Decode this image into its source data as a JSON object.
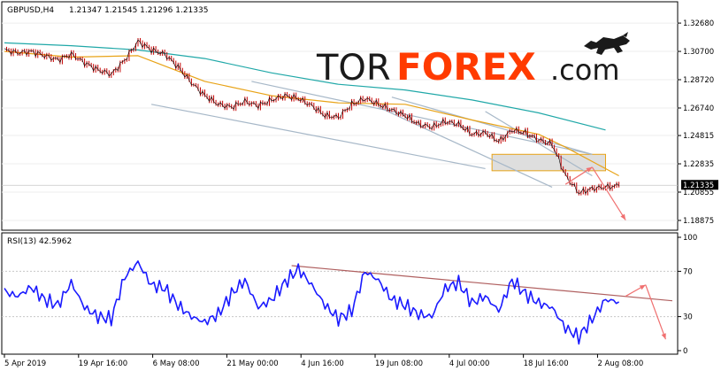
{
  "header": {
    "symbol": "GBPUSD,H4",
    "quote": "1.21347 1.21545 1.21296 1.21335"
  },
  "logo": {
    "part1": "TOR",
    "part2": "FOREX",
    "part3": ".com",
    "icon": "bull-icon",
    "accent_color": "#ff3b00"
  },
  "rsi_panel": {
    "title": "RSI(13) 42.5962"
  },
  "chart_data": [
    {
      "type": "line",
      "panel": "price",
      "ylim": [
        1.185,
        1.338
      ],
      "y_ticks": [
        "1.32680",
        "1.30700",
        "1.28720",
        "1.26740",
        "1.24815",
        "1.22835",
        "1.20855",
        "1.18875"
      ],
      "y_tick_values": [
        1.3268,
        1.307,
        1.2872,
        1.2674,
        1.24815,
        1.22835,
        1.20855,
        1.18875
      ],
      "current_price_label": "1.21335",
      "current_price": 1.21335,
      "x_ticks": [
        "5 Apr 2019",
        "19 Apr 16:00",
        "6 May 08:00",
        "21 May 00:00",
        "4 Jun 16:00",
        "19 Jun 08:00",
        "4 Jul 00:00",
        "18 Jul 16:00",
        "2 Aug 08:00"
      ],
      "x_range": [
        0,
        100
      ],
      "x_tick_positions": [
        0,
        11.1,
        22.2,
        33.3,
        44.4,
        55.5,
        66.6,
        77.7,
        88.8
      ],
      "series": [
        {
          "kind": "candles",
          "color": "#c40000",
          "x": [
            0,
            2,
            4,
            6,
            8,
            10,
            12,
            14,
            16,
            18,
            20,
            22,
            24,
            26,
            28,
            30,
            32,
            34,
            36,
            38,
            40,
            42,
            44,
            46,
            48,
            50,
            52,
            54,
            56,
            58,
            60,
            62,
            64,
            66,
            68,
            70,
            72,
            74,
            76,
            78,
            80,
            82,
            84,
            86,
            88,
            90,
            92
          ],
          "close": [
            1.308,
            1.306,
            1.307,
            1.304,
            1.301,
            1.305,
            1.299,
            1.294,
            1.291,
            1.301,
            1.314,
            1.308,
            1.305,
            1.296,
            1.285,
            1.276,
            1.27,
            1.268,
            1.272,
            1.269,
            1.273,
            1.276,
            1.274,
            1.269,
            1.262,
            1.261,
            1.27,
            1.274,
            1.27,
            1.266,
            1.262,
            1.256,
            1.254,
            1.258,
            1.256,
            1.249,
            1.25,
            1.244,
            1.252,
            1.25,
            1.245,
            1.242,
            1.22,
            1.208,
            1.211,
            1.212,
            1.213
          ]
        },
        {
          "kind": "ma-fast",
          "color": "#e8a317",
          "x": [
            0,
            10,
            20,
            30,
            40,
            50,
            60,
            70,
            80,
            84,
            88,
            92
          ],
          "value": [
            1.307,
            1.303,
            1.304,
            1.286,
            1.276,
            1.271,
            1.27,
            1.259,
            1.249,
            1.24,
            1.23,
            1.22
          ]
        },
        {
          "kind": "ma-slow",
          "color": "#20a8a8",
          "x": [
            0,
            10,
            20,
            30,
            40,
            50,
            60,
            70,
            80,
            90
          ],
          "value": [
            1.313,
            1.311,
            1.308,
            1.302,
            1.292,
            1.284,
            1.28,
            1.273,
            1.264,
            1.252
          ]
        }
      ],
      "annotations": {
        "channel_color": "#a7b8c8",
        "zone": {
          "x_from": 73,
          "x_to": 90,
          "y_from": 1.2235,
          "y_to": 1.235
        },
        "arrows_color": "#f07070",
        "arrows": [
          {
            "from": [
              84,
              1.214
            ],
            "to": [
              88,
              1.226
            ]
          },
          {
            "from": [
              88,
              1.226
            ],
            "to": [
              93,
              1.189
            ]
          }
        ]
      }
    },
    {
      "type": "line",
      "panel": "rsi",
      "ylim": [
        0,
        100
      ],
      "y_ticks": [
        "100",
        "70",
        "30",
        "0"
      ],
      "y_tick_values": [
        100,
        70,
        30,
        0
      ],
      "series": [
        {
          "name": "RSI(13)",
          "color": "#1a1aff",
          "x": [
            0,
            2,
            4,
            6,
            8,
            10,
            12,
            14,
            16,
            18,
            20,
            22,
            24,
            26,
            28,
            30,
            32,
            34,
            36,
            38,
            40,
            42,
            44,
            46,
            48,
            50,
            52,
            54,
            56,
            58,
            60,
            62,
            64,
            66,
            68,
            70,
            72,
            74,
            76,
            78,
            80,
            82,
            84,
            86,
            88,
            90,
            92
          ],
          "value": [
            52,
            48,
            56,
            45,
            40,
            60,
            38,
            30,
            28,
            65,
            78,
            58,
            55,
            40,
            30,
            25,
            32,
            50,
            62,
            38,
            45,
            60,
            72,
            58,
            40,
            28,
            35,
            70,
            62,
            45,
            40,
            32,
            30,
            55,
            60,
            42,
            48,
            35,
            62,
            50,
            42,
            38,
            20,
            12,
            28,
            45,
            43
          ]
        }
      ],
      "annotations": {
        "trendline_color": "#b06060",
        "trendline": {
          "from": [
            43,
            75
          ],
          "to": [
            100,
            44
          ]
        },
        "arrows_color": "#f07070",
        "arrows": [
          {
            "from": [
              93,
              48
            ],
            "to": [
              96,
              58
            ]
          },
          {
            "from": [
              96,
              58
            ],
            "to": [
              99,
              10
            ]
          }
        ]
      }
    }
  ]
}
